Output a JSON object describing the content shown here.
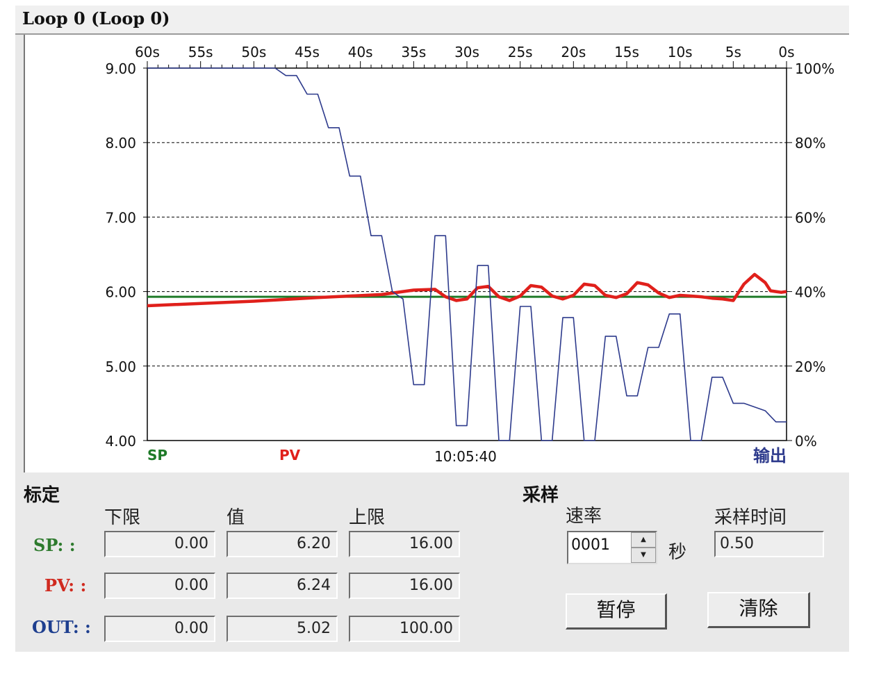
{
  "window": {
    "title": "Loop 0 (Loop 0)"
  },
  "chart_data": {
    "type": "line",
    "x_ticks": [
      "60s",
      "55s",
      "50s",
      "45s",
      "40s",
      "35s",
      "30s",
      "25s",
      "20s",
      "15s",
      "10s",
      "5s",
      "0s"
    ],
    "y_left_ticks": [
      "9.00",
      "8.00",
      "7.00",
      "6.00",
      "5.00",
      "4.00"
    ],
    "y_right_ticks": [
      "100%",
      "80%",
      "60%",
      "40%",
      "20%",
      "0%"
    ],
    "ylim_left": [
      4,
      9
    ],
    "ylim_right": [
      0,
      100
    ],
    "x_range_seconds_ago": [
      60,
      0
    ],
    "grid": "horizontal dashed",
    "series": [
      {
        "name": "SP",
        "axis": "left",
        "color": "#1e7a28",
        "points": [
          [
            60,
            5.93
          ],
          [
            0,
            5.93
          ]
        ]
      },
      {
        "name": "PV",
        "axis": "left",
        "color": "#e0201b",
        "points": [
          [
            60,
            5.81
          ],
          [
            50,
            5.87
          ],
          [
            44,
            5.92
          ],
          [
            38,
            5.96
          ],
          [
            35,
            6.02
          ],
          [
            33,
            6.03
          ],
          [
            32,
            5.93
          ],
          [
            31,
            5.88
          ],
          [
            30,
            5.9
          ],
          [
            29,
            6.05
          ],
          [
            28,
            6.07
          ],
          [
            27,
            5.93
          ],
          [
            26,
            5.88
          ],
          [
            25,
            5.94
          ],
          [
            24,
            6.08
          ],
          [
            23,
            6.06
          ],
          [
            22,
            5.94
          ],
          [
            21,
            5.9
          ],
          [
            20,
            5.95
          ],
          [
            19,
            6.1
          ],
          [
            18,
            6.08
          ],
          [
            17,
            5.95
          ],
          [
            16,
            5.92
          ],
          [
            15,
            5.97
          ],
          [
            14,
            6.12
          ],
          [
            13,
            6.09
          ],
          [
            12,
            5.98
          ],
          [
            11,
            5.92
          ],
          [
            10,
            5.95
          ],
          [
            9,
            5.94
          ],
          [
            8,
            5.93
          ],
          [
            7,
            5.91
          ],
          [
            6,
            5.9
          ],
          [
            5,
            5.88
          ],
          [
            4,
            6.1
          ],
          [
            3,
            6.23
          ],
          [
            2,
            6.12
          ],
          [
            1.5,
            6.01
          ],
          [
            1,
            6.0
          ],
          [
            0.5,
            5.99
          ],
          [
            0,
            6.0
          ]
        ]
      },
      {
        "name": "输出",
        "axis": "right",
        "color": "#2d3a8c",
        "points": [
          [
            60,
            100
          ],
          [
            48,
            100
          ],
          [
            47,
            98
          ],
          [
            46,
            98
          ],
          [
            45,
            93
          ],
          [
            44,
            93
          ],
          [
            43,
            84
          ],
          [
            42,
            84
          ],
          [
            41,
            71
          ],
          [
            40,
            71
          ],
          [
            39,
            55
          ],
          [
            38,
            55
          ],
          [
            37,
            40
          ],
          [
            36,
            38
          ],
          [
            35,
            15
          ],
          [
            34,
            15
          ],
          [
            33,
            55
          ],
          [
            32,
            55
          ],
          [
            31,
            4
          ],
          [
            30,
            4
          ],
          [
            29,
            47
          ],
          [
            28,
            47
          ],
          [
            27,
            0
          ],
          [
            26,
            0
          ],
          [
            25,
            36
          ],
          [
            24,
            36
          ],
          [
            23,
            0
          ],
          [
            22,
            0
          ],
          [
            21,
            33
          ],
          [
            20,
            33
          ],
          [
            19,
            0
          ],
          [
            18,
            0
          ],
          [
            17,
            28
          ],
          [
            16,
            28
          ],
          [
            15,
            12
          ],
          [
            14,
            12
          ],
          [
            13,
            25
          ],
          [
            12,
            25
          ],
          [
            11,
            34
          ],
          [
            10,
            34
          ],
          [
            9,
            0
          ],
          [
            8,
            0
          ],
          [
            7,
            17
          ],
          [
            6,
            17
          ],
          [
            5,
            10
          ],
          [
            4,
            10
          ],
          [
            3,
            9
          ],
          [
            2,
            8
          ],
          [
            1,
            5
          ],
          [
            0,
            5
          ]
        ]
      }
    ],
    "legend": {
      "sp": "SP",
      "pv": "PV",
      "out": "输出"
    },
    "timestamp": "10:05:40"
  },
  "calibration": {
    "title": "标定",
    "col_low": "下限",
    "col_value": "值",
    "col_high": "上限",
    "rows": [
      {
        "label": "SP: :",
        "color": "#2d7a2d",
        "low": "0.00",
        "value": "6.20",
        "high": "16.00"
      },
      {
        "label": "PV: :",
        "color": "#d02a1f",
        "low": "0.00",
        "value": "6.24",
        "high": "16.00"
      },
      {
        "label": "OUT: :",
        "color": "#1e3f8f",
        "low": "0.00",
        "value": "5.02",
        "high": "100.00"
      }
    ]
  },
  "sampling": {
    "title": "采样",
    "rate_label": "速率",
    "rate_value": "0001",
    "rate_unit": "秒",
    "time_label": "采样时间",
    "time_value": "0.50",
    "pause_button": "暂停",
    "clear_button": "清除"
  }
}
